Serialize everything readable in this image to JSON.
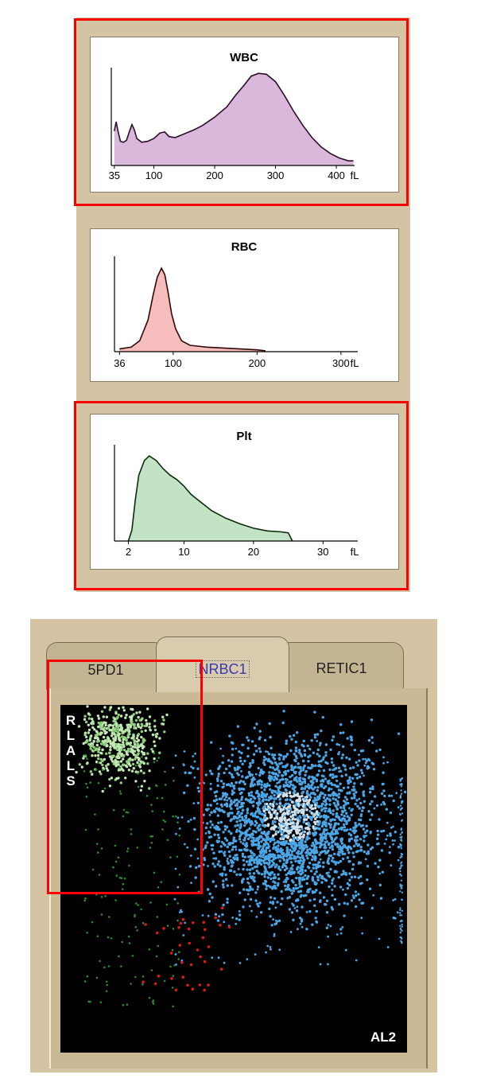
{
  "histograms": [
    {
      "title": "WBC",
      "unit": "fL",
      "x_min": 30,
      "x_max": 430,
      "y_max": 100,
      "ticks": [
        {
          "value": 35,
          "label": "35"
        },
        {
          "value": 100,
          "label": "100"
        },
        {
          "value": 200,
          "label": "200"
        },
        {
          "value": 300,
          "label": "300"
        },
        {
          "value": 400,
          "label": "400"
        }
      ],
      "fill_color": "#d9b8dc",
      "line_color": "#2b0f2b",
      "points": [
        [
          35,
          37
        ],
        [
          38,
          47
        ],
        [
          41,
          37
        ],
        [
          45,
          26
        ],
        [
          50,
          25
        ],
        [
          55,
          27
        ],
        [
          60,
          37
        ],
        [
          64,
          44
        ],
        [
          68,
          38
        ],
        [
          72,
          29
        ],
        [
          80,
          25
        ],
        [
          90,
          26
        ],
        [
          100,
          29
        ],
        [
          110,
          35
        ],
        [
          118,
          36
        ],
        [
          125,
          31
        ],
        [
          135,
          30
        ],
        [
          150,
          34
        ],
        [
          165,
          38
        ],
        [
          180,
          43
        ],
        [
          200,
          52
        ],
        [
          220,
          63
        ],
        [
          235,
          76
        ],
        [
          248,
          86
        ],
        [
          260,
          96
        ],
        [
          272,
          99
        ],
        [
          285,
          98
        ],
        [
          300,
          90
        ],
        [
          315,
          75
        ],
        [
          330,
          58
        ],
        [
          345,
          43
        ],
        [
          360,
          30
        ],
        [
          375,
          20
        ],
        [
          390,
          13
        ],
        [
          405,
          8
        ],
        [
          420,
          5
        ],
        [
          428,
          5
        ]
      ]
    },
    {
      "title": "RBC",
      "unit": "fL",
      "x_min": 30,
      "x_max": 320,
      "y_max": 100,
      "ticks": [
        {
          "value": 36,
          "label": "36"
        },
        {
          "value": 100,
          "label": "100"
        },
        {
          "value": 200,
          "label": "200"
        },
        {
          "value": 300,
          "label": "300"
        }
      ],
      "fill_color": "#f7bcbc",
      "line_color": "#300808",
      "points": [
        [
          36,
          3
        ],
        [
          50,
          5
        ],
        [
          60,
          12
        ],
        [
          70,
          35
        ],
        [
          76,
          62
        ],
        [
          81,
          82
        ],
        [
          86,
          92
        ],
        [
          90,
          85
        ],
        [
          94,
          65
        ],
        [
          98,
          42
        ],
        [
          103,
          25
        ],
        [
          110,
          12
        ],
        [
          120,
          7
        ],
        [
          140,
          5
        ],
        [
          160,
          4
        ],
        [
          180,
          3
        ],
        [
          200,
          2
        ],
        [
          210,
          1
        ]
      ]
    },
    {
      "title": "Plt",
      "unit": "fL",
      "x_min": 0,
      "x_max": 35,
      "y_max": 100,
      "ticks": [
        {
          "value": 2,
          "label": "2"
        },
        {
          "value": 10,
          "label": "10"
        },
        {
          "value": 20,
          "label": "20"
        },
        {
          "value": 30,
          "label": "30"
        }
      ],
      "fill_color": "#c3e3c6",
      "line_color": "#0c2b0c",
      "points": [
        [
          2,
          0
        ],
        [
          2.5,
          12
        ],
        [
          3,
          45
        ],
        [
          3.5,
          72
        ],
        [
          4.3,
          88
        ],
        [
          5,
          93
        ],
        [
          6,
          88
        ],
        [
          7,
          79
        ],
        [
          8,
          72
        ],
        [
          9,
          67
        ],
        [
          10,
          60
        ],
        [
          11,
          51
        ],
        [
          12,
          45
        ],
        [
          14,
          33
        ],
        [
          16,
          25
        ],
        [
          18,
          19
        ],
        [
          20,
          14
        ],
        [
          22,
          11
        ],
        [
          24,
          10
        ],
        [
          25,
          9
        ],
        [
          25.6,
          0
        ]
      ]
    }
  ],
  "scatter": {
    "tabs": [
      {
        "label": "5PD1",
        "active": false
      },
      {
        "label": "NRBC1",
        "active": true
      },
      {
        "label": "RETIC1",
        "active": false
      }
    ],
    "y_axis_label": "RLALS",
    "x_axis_label": "AL2",
    "colors": {
      "background": "#000000",
      "lymph_green": "#c2e8b4",
      "sparse_green": "#2e8a2e",
      "blue": "#4aa6e6",
      "blue_core": "#d2e2ec",
      "red": "#d81c1c"
    }
  }
}
